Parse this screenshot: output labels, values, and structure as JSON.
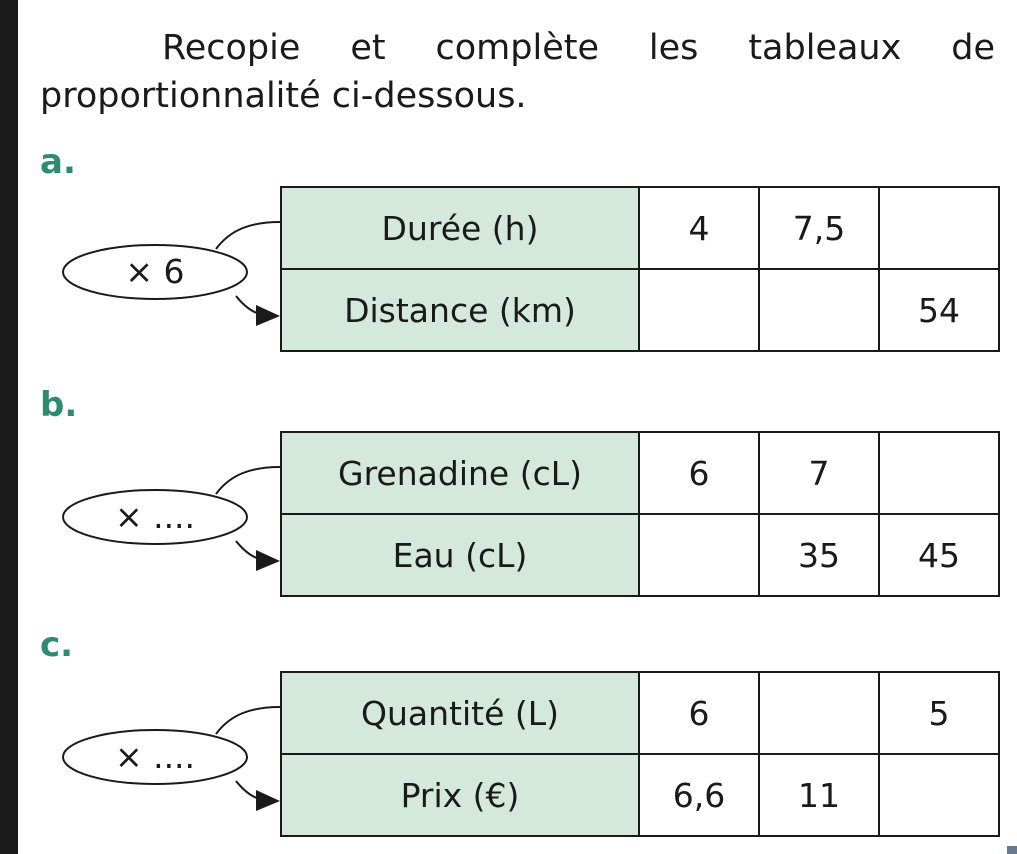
{
  "instruction": "Recopie et complète les tableaux de proportionnalité ci-dessous.",
  "exercises": [
    {
      "letter": "a.",
      "operator": "× 6",
      "rows": [
        {
          "label": "Durée (h)",
          "values": [
            "4",
            "7,5",
            ""
          ]
        },
        {
          "label": "Distance (km)",
          "values": [
            "",
            "",
            "54"
          ]
        }
      ]
    },
    {
      "letter": "b.",
      "operator": "× ....",
      "rows": [
        {
          "label": "Grenadine (cL)",
          "values": [
            "6",
            "7",
            ""
          ]
        },
        {
          "label": "Eau (cL)",
          "values": [
            "",
            "35",
            "45"
          ]
        }
      ]
    },
    {
      "letter": "c.",
      "operator": "× ....",
      "rows": [
        {
          "label": "Quantité (L)",
          "values": [
            "6",
            "",
            "5"
          ]
        },
        {
          "label": "Prix (€)",
          "values": [
            "6,6",
            "11",
            ""
          ]
        }
      ]
    }
  ],
  "colors": {
    "header_fill": "#d4e8dc",
    "letter_color": "#2e8b6f",
    "frame_background": "#1b1b1b"
  }
}
